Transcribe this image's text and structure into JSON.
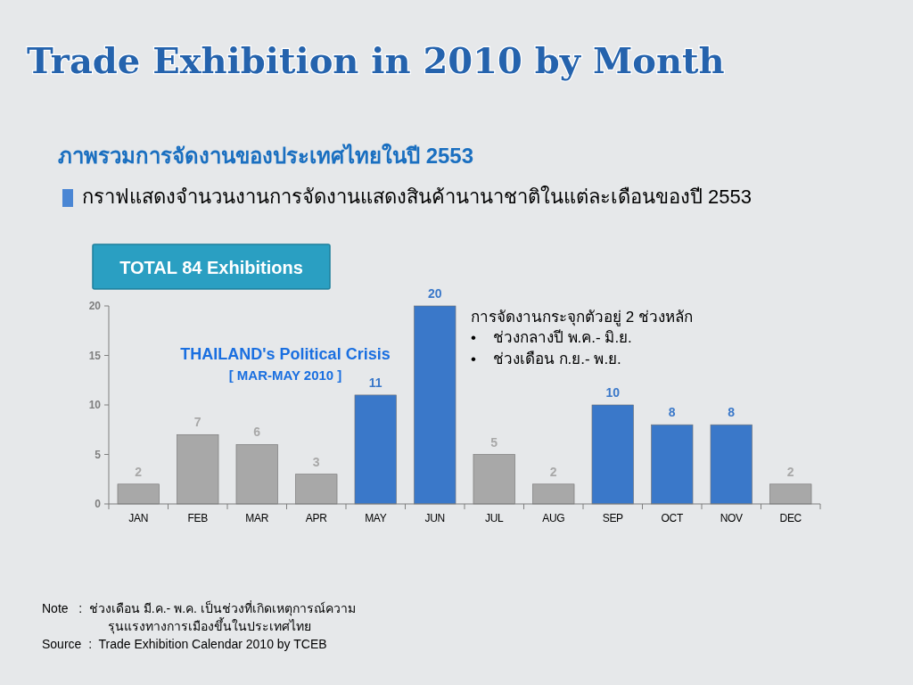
{
  "chart_data": {
    "type": "bar",
    "title": "Trade Exhibition in 2010 by Month",
    "subtitle": "ภาพรวมการจัดงานของประเทศไทยในปี 2553",
    "annotations": [
      "กราฟแสดงจำนวนงานการจัดงานแสดงสินค้านานาชาติในแต่ละเดือนของปี 2553",
      "TOTAL 84 Exhibitions",
      "THAILAND's Political Crisis",
      "[ MAR-MAY 2010 ]",
      "การจัดงานกระจุกตัวอยู่ 2 ช่วงหลัก",
      "•    ช่วงกลางปี พ.ค.- มิ.ย.",
      "•    ช่วงเดือน ก.ย.- พ.ย.",
      "Note   :  ช่วงเดือน มี.ค.- พ.ค. เป็นช่วงที่เกิดเหตุการณ์ความรุนแรงทางการเมืองขึ้นในประเทศไทย",
      "Source  :  Trade Exhibition Calendar 2010 by TCEB"
    ],
    "categories": [
      "JAN",
      "FEB",
      "MAR",
      "APR",
      "MAY",
      "JUN",
      "JUL",
      "AUG",
      "SEP",
      "OCT",
      "NOV",
      "DEC"
    ],
    "values": [
      2,
      7,
      6,
      3,
      11,
      20,
      5,
      2,
      10,
      8,
      8,
      2
    ],
    "colors": [
      "#a8a8a8",
      "#a8a8a8",
      "#a8a8a8",
      "#a8a8a8",
      "#3a78c9",
      "#3a78c9",
      "#a8a8a8",
      "#a8a8a8",
      "#3a78c9",
      "#3a78c9",
      "#3a78c9",
      "#a8a8a8"
    ],
    "ylim": [
      0,
      20
    ],
    "yticks": [
      0,
      5,
      10,
      15,
      20
    ],
    "data_labels": true
  }
}
